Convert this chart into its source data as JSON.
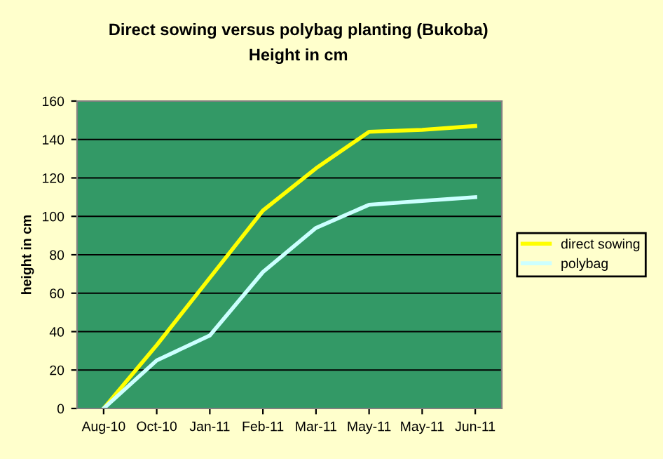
{
  "chart_data": {
    "type": "line",
    "title": "Direct sowing versus polybag planting (Bukoba)",
    "subtitle": "Height in cm",
    "ylabel": "height in cm",
    "categories": [
      "Aug-10",
      "Oct-10",
      "Jan-11",
      "Feb-11",
      "Mar-11",
      "May-11",
      "May-11",
      "Jun-11"
    ],
    "series": [
      {
        "name": "direct sowing",
        "color": "#ffff00",
        "values": [
          0,
          33,
          68,
          103,
          125,
          144,
          145,
          147
        ]
      },
      {
        "name": "polybag",
        "color": "#ccffff",
        "values": [
          0,
          25,
          38,
          71,
          94,
          106,
          108,
          110
        ]
      }
    ],
    "ylim": [
      0,
      160
    ],
    "yticks": [
      0,
      20,
      40,
      60,
      80,
      100,
      120,
      140,
      160
    ],
    "grid": "y",
    "legend": "right",
    "marker": "none",
    "line_style": "solid"
  }
}
